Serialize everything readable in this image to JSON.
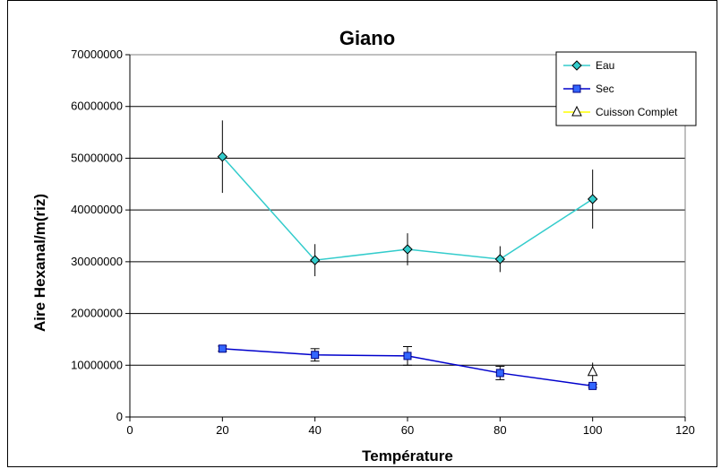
{
  "chart_data": {
    "type": "line",
    "title": "Giano",
    "xlabel": "Température",
    "ylabel": "Aire Hexanal/m(riz)",
    "xlim": [
      0,
      120
    ],
    "ylim": [
      0,
      70000000
    ],
    "x_ticks": [
      "0",
      "20",
      "40",
      "60",
      "80",
      "100",
      "120"
    ],
    "y_ticks": [
      "0",
      "10000000",
      "20000000",
      "30000000",
      "40000000",
      "50000000",
      "60000000",
      "70000000"
    ],
    "grid": "horizontal",
    "legend_position": "top-right",
    "series": [
      {
        "name": "Eau",
        "marker": "diamond",
        "color": "#33CCCC",
        "x": [
          20,
          40,
          60,
          80,
          100
        ],
        "y": [
          50300000,
          30300000,
          32400000,
          30500000,
          42100000
        ],
        "error": [
          7000000,
          3100000,
          3100000,
          2500000,
          5700000
        ]
      },
      {
        "name": "Sec",
        "marker": "square",
        "color": "#0000CC",
        "x": [
          20,
          40,
          60,
          80,
          100
        ],
        "y": [
          13200000,
          12000000,
          11800000,
          8500000,
          6000000
        ],
        "error": [
          500000,
          1200000,
          1800000,
          1300000,
          300000
        ]
      },
      {
        "name": "Cuisson Complet",
        "marker": "triangle",
        "color": "#FFFF00",
        "x": [
          100
        ],
        "y": [
          8700000
        ],
        "error": [
          1800000
        ]
      }
    ]
  }
}
